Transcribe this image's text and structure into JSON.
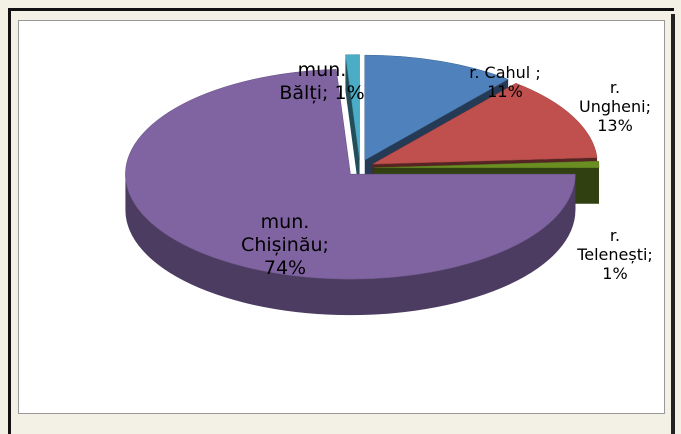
{
  "chart_data": {
    "type": "pie3d",
    "values": [
      11,
      13,
      1,
      74,
      1
    ],
    "value_labels": [
      "r. Cahul ;\n11%",
      "r.\nUngheni;\n13%",
      "r.\nTelenești;\n1%",
      "mun.\nChișinău;\n74%",
      "mun.\nBălți; 1%"
    ],
    "colors": [
      "#4f81bd",
      "#c0504d",
      "#6b8e23",
      "#8064a2",
      "#4bacc6"
    ]
  }
}
